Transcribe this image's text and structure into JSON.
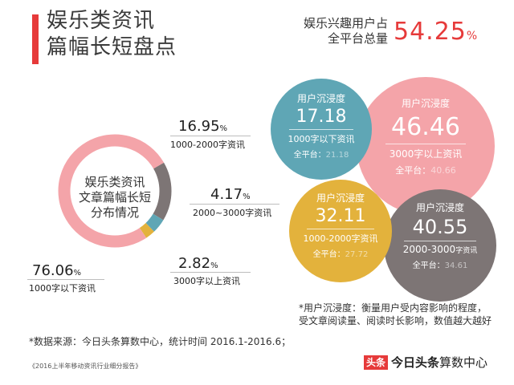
{
  "header": {
    "title_line1": "娱乐类资讯",
    "title_line2": "篇幅长短盘点",
    "share_label_line1": "娱乐兴趣用户占",
    "share_label_line2": "全平台总量",
    "share_value": "54.25",
    "share_unit": "%",
    "accent_color": "#e63a3a"
  },
  "chart_data": [
    {
      "type": "pie",
      "title": "娱乐类资讯文章篇幅长短分布情况",
      "center_label_line1": "娱乐类资讯",
      "center_label_line2": "文章篇幅长短",
      "center_label_line3": "分布情况",
      "slices": [
        {
          "label": "1000字以下资讯",
          "value": 76.06,
          "value_text": "76.06",
          "color": "#f4a4a9"
        },
        {
          "label": "1000-2000字资讯",
          "value": 16.95,
          "value_text": "16.95",
          "color": "#7d7575"
        },
        {
          "label": "2000~3000字资讯",
          "value": 4.17,
          "value_text": "4.17",
          "color": "#5fa6b5"
        },
        {
          "label": "3000字以上资讯",
          "value": 2.82,
          "value_text": "2.82",
          "color": "#e3b23c"
        }
      ],
      "unit": "%"
    },
    {
      "type": "bubble",
      "measure": "用户沉浸度",
      "platform_label": "全平台：",
      "items": [
        {
          "category": "1000字以下资讯",
          "value": "17.18",
          "platform": "21.18",
          "color": "#5fa6b5"
        },
        {
          "category": "3000字以上资讯",
          "value": "46.46",
          "platform": "40.66",
          "color": "#f4a4a9"
        },
        {
          "category": "1000-2000字资讯",
          "value": "32.11",
          "platform": "27.72",
          "color": "#e3b23c"
        },
        {
          "category": "2000-3000",
          "category_suffix": "字资讯",
          "value": "40.55",
          "platform": "34.61",
          "color": "#7d7575"
        }
      ]
    }
  ],
  "footer": {
    "note": "*用户沉浸度：衡量用户受内容影响的程度，受文章阅读量、阅读时长影响，数值越大越好",
    "source": "*数据来源：今日头条算数中心，统计时间 2016.1-2016.6；",
    "report": "《2016上半年移动资讯行业细分报告》",
    "brand_tag": "头条",
    "brand_bold": "今日头条",
    "brand_rest": "算数中心"
  }
}
